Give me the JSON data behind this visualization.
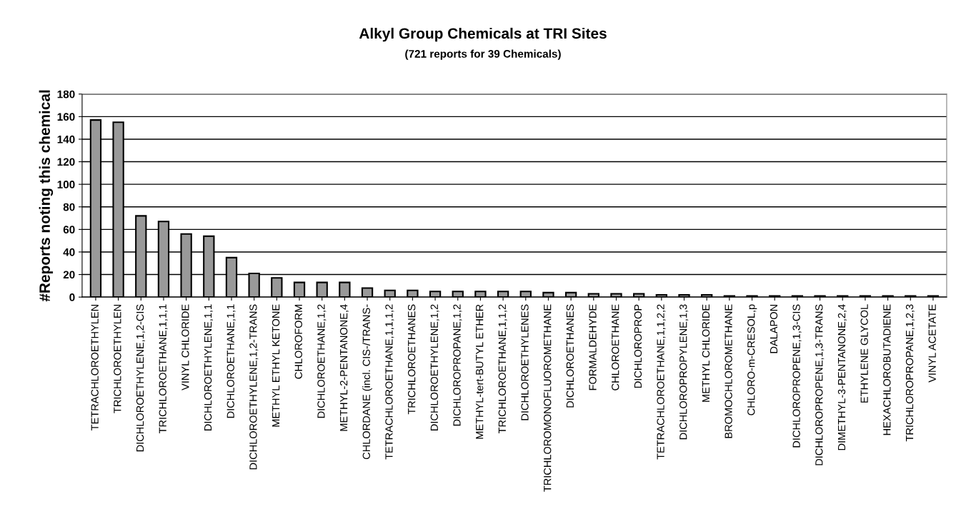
{
  "chart_data": {
    "type": "bar",
    "title": "Alkyl Group Chemicals at TRI Sites",
    "subtitle": "(721 reports for 39 Chemicals)",
    "ylabel": "#Reports noting this chemical",
    "categories": [
      "TETRACHLOROETHYLEN",
      "TRICHLOROETHYLEN",
      "DICHLOROETHYLENE,1,2-CIS",
      "TRICHLOROETHANE,1,1,1",
      "VINYL CHLORIDE",
      "DICHLOROETHYLENE,1,1",
      "DICHLOROETHANE,1,1",
      "DICHLOROETHYLENE,1,2-TRANS",
      "METHYL ETHYL KETONE",
      "CHLOROFORM",
      "DICHLOROETHANE,1,2",
      "METHYL-2-PENTANONE,4",
      "CHLORDANE (incl. CIS-/TRANS-",
      "TETRACHLOROETHANE,1,1,1,2",
      "TRICHLOROETHANES",
      "DICHLOROETHYLENE,1,2",
      "DICHLOROPROPANE,1,2",
      "METHYL-tert-BUTYL ETHER",
      "TRICHLOROETHANE,1,1,2",
      "DICHLOROETHYLENES",
      "TRICHLOROMONOFLUOROMETHANE",
      "DICHLOROETHANES",
      "FORMALDEHYDE",
      "CHLOROETHANE",
      "DICHLOROPROP",
      "TETRACHLOROETHANE,1,1,2,2",
      "DICHLOROPROPYLENE,1,3",
      "METHYL CHLORIDE",
      "BROMOCHLOROMETHANE",
      "CHLORO-m-CRESOL,p",
      "DALAPON",
      "DICHLOROPROPENE,1,3-CIS",
      "DICHLOROPROPENE,1,3-TRANS",
      "DIMETHYL-3-PENTANONE,2,4",
      "ETHYLENE GLYCOL",
      "HEXACHLOROBUTADIENE",
      "TRICHLOROPROPANE,1,2,3",
      "VINYL ACETATE"
    ],
    "values": [
      157,
      155,
      72,
      67,
      56,
      54,
      35,
      21,
      17,
      13,
      13,
      13,
      8,
      6,
      6,
      5,
      5,
      5,
      5,
      5,
      4,
      4,
      3,
      3,
      3,
      2,
      2,
      2,
      1,
      1,
      1,
      1,
      1,
      1,
      1,
      1,
      1,
      1
    ],
    "color": "#999999",
    "ylim": [
      0,
      180
    ],
    "yticks": [
      0,
      20,
      40,
      60,
      80,
      100,
      120,
      140,
      160,
      180
    ],
    "grid": "y",
    "legend": false
  }
}
